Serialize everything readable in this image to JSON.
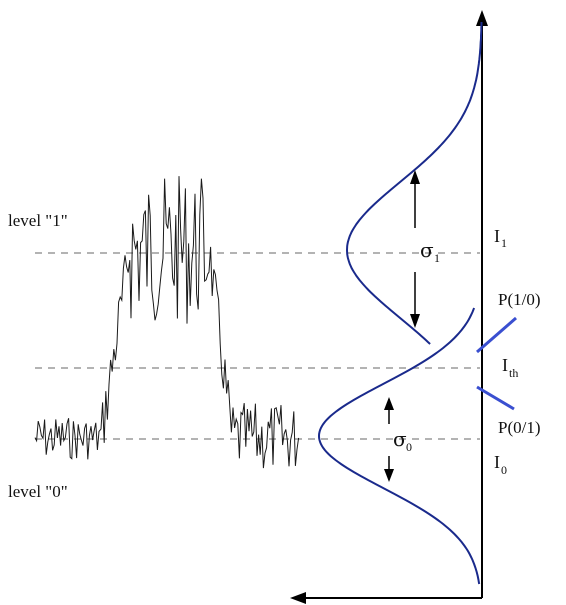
{
  "labels": {
    "level1": "level \"1\"",
    "level0": "level \"0\"",
    "sigma1": "σ",
    "sigma1_sub": "1",
    "sigma0": "σ",
    "sigma0_sub": "0",
    "I1": "I",
    "I1_sub": "1",
    "Ith": "I",
    "Ith_sub": "th",
    "I0": "I",
    "I0_sub": "0",
    "P10": "P(1/0)",
    "P01": "P(0/1)"
  },
  "colors": {
    "curve": "#1a2a8c",
    "pointer": "#3a4fd0",
    "dashed": "#9a9a9a",
    "signal": "#1a1a1a",
    "axis": "#000000"
  }
}
